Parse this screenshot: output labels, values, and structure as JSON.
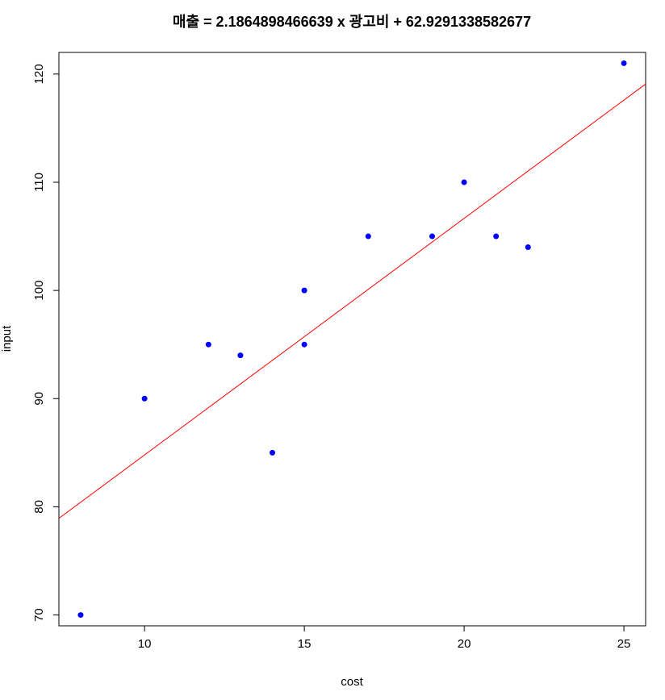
{
  "chart_data": {
    "type": "scatter",
    "title": "매출 = 2.1864898466639 x 광고비 + 62.9291338582677",
    "xlabel": "cost",
    "ylabel": "input",
    "xlim": [
      7.32,
      25.68
    ],
    "ylim": [
      69.0,
      122.0
    ],
    "xticks": [
      10,
      15,
      20,
      25
    ],
    "yticks": [
      70,
      80,
      90,
      100,
      110,
      120
    ],
    "grid": false,
    "points": [
      {
        "x": 8,
        "y": 70
      },
      {
        "x": 10,
        "y": 90
      },
      {
        "x": 12,
        "y": 95
      },
      {
        "x": 13,
        "y": 94
      },
      {
        "x": 14,
        "y": 85
      },
      {
        "x": 15,
        "y": 100
      },
      {
        "x": 15,
        "y": 95
      },
      {
        "x": 17,
        "y": 105
      },
      {
        "x": 19,
        "y": 105
      },
      {
        "x": 20,
        "y": 110
      },
      {
        "x": 21,
        "y": 105
      },
      {
        "x": 22,
        "y": 104
      },
      {
        "x": 25,
        "y": 121
      }
    ],
    "regression_line": {
      "slope": 2.1864898466639,
      "intercept": 62.9291338582677
    },
    "colors": {
      "points": "#0000ff",
      "line": "#ff0000",
      "axes": "#000000"
    }
  }
}
